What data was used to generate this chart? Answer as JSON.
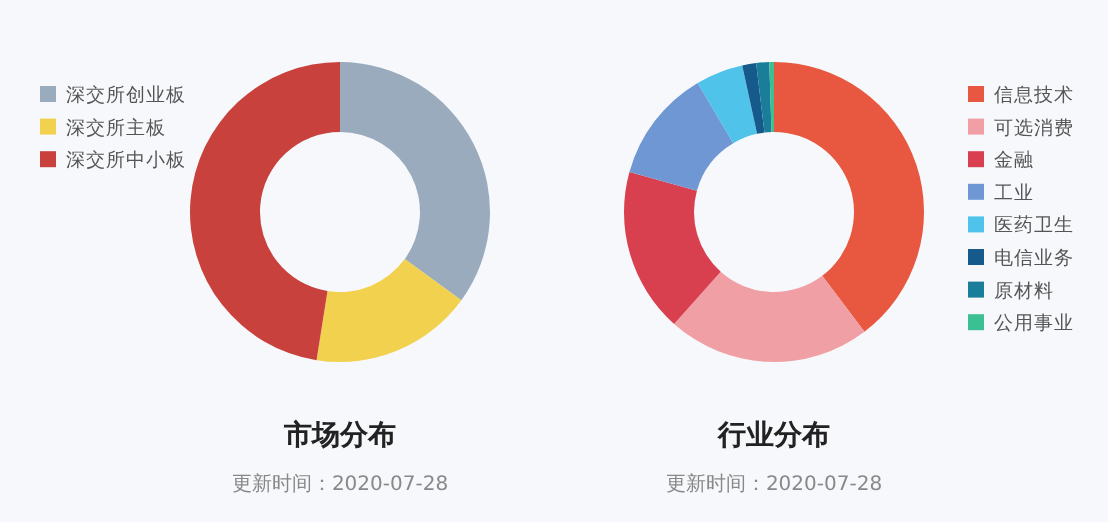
{
  "chart_data": [
    {
      "type": "donut",
      "title": "市场分布",
      "subtitle": "更新时间：2020-07-28",
      "legend": "left",
      "categories": [
        "深交所创业板",
        "深交所主板",
        "深交所中小板"
      ],
      "values": [
        35,
        17.5,
        47.5
      ],
      "colors": [
        "#9aabbd",
        "#f2d14f",
        "#c8413c"
      ]
    },
    {
      "type": "donut",
      "title": "行业分布",
      "subtitle": "更新时间：2020-07-28",
      "legend": "right",
      "categories": [
        "信息技术",
        "可选消费",
        "金融",
        "工业",
        "医药卫生",
        "电信业务",
        "原材料",
        "公用事业"
      ],
      "values": [
        39.7,
        21.9,
        17.7,
        12.2,
        5.1,
        1.5,
        1.4,
        0.5
      ],
      "colors": [
        "#e8573f",
        "#f0a0a4",
        "#d9404f",
        "#6f97d3",
        "#4fc3ea",
        "#155a8a",
        "#1a7e9b",
        "#3dbf94"
      ]
    }
  ]
}
